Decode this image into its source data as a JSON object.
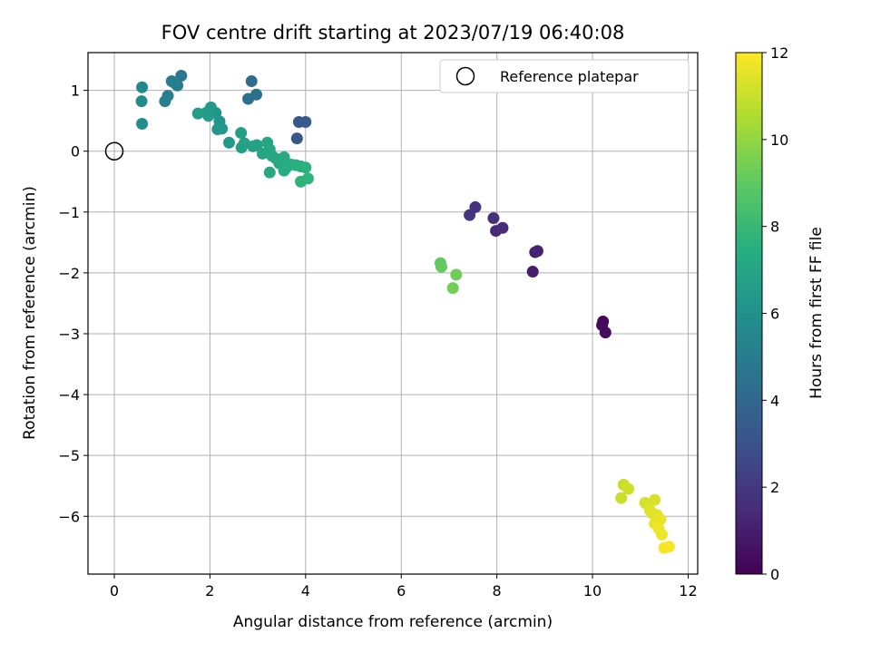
{
  "chart_data": {
    "type": "scatter",
    "title": "FOV centre drift starting at 2023/07/19 06:40:08",
    "xlabel": "Angular distance from reference (arcmin)",
    "ylabel": "Rotation from reference (arcmin)",
    "xlim": [
      -0.55,
      12.2
    ],
    "ylim": [
      -6.95,
      1.62
    ],
    "xticks": [
      0,
      2,
      4,
      6,
      8,
      10,
      12
    ],
    "xtick_labels": [
      "0",
      "2",
      "4",
      "6",
      "8",
      "10",
      "12"
    ],
    "yticks": [
      1,
      0,
      -1,
      -2,
      -3,
      -4,
      -5,
      -6
    ],
    "ytick_labels": [
      "1",
      "0",
      "−1",
      "−2",
      "−3",
      "−4",
      "−5",
      "−6"
    ],
    "grid": true,
    "colormap": "viridis",
    "colorbar": {
      "label": "Hours from first FF file",
      "range": [
        0,
        12
      ],
      "ticks": [
        0,
        2,
        4,
        6,
        8,
        10,
        12
      ],
      "tick_labels": [
        "0",
        "2",
        "4",
        "6",
        "8",
        "10",
        "12"
      ]
    },
    "legend": {
      "position": "top-right",
      "entries": [
        {
          "label": "Reference platepar",
          "marker": "open-circle"
        }
      ]
    },
    "reference_point": {
      "x": 0,
      "y": 0
    },
    "points": [
      {
        "x": 10.22,
        "y": -2.8,
        "c": 0.2
      },
      {
        "x": 10.2,
        "y": -2.86,
        "c": 0.3
      },
      {
        "x": 10.27,
        "y": -2.98,
        "c": 0.4
      },
      {
        "x": 8.75,
        "y": -1.98,
        "c": 1.0
      },
      {
        "x": 8.8,
        "y": -1.66,
        "c": 1.1
      },
      {
        "x": 8.85,
        "y": -1.64,
        "c": 1.2
      },
      {
        "x": 7.98,
        "y": -1.31,
        "c": 1.4
      },
      {
        "x": 8.12,
        "y": -1.26,
        "c": 1.5
      },
      {
        "x": 7.93,
        "y": -1.1,
        "c": 1.6
      },
      {
        "x": 7.55,
        "y": -0.92,
        "c": 1.8
      },
      {
        "x": 7.43,
        "y": -1.05,
        "c": 1.9
      },
      {
        "x": 3.82,
        "y": 0.21,
        "c": 3.2
      },
      {
        "x": 3.86,
        "y": 0.48,
        "c": 3.3
      },
      {
        "x": 4.0,
        "y": 0.48,
        "c": 3.4
      },
      {
        "x": 2.87,
        "y": 1.15,
        "c": 4.2
      },
      {
        "x": 2.8,
        "y": 0.86,
        "c": 4.3
      },
      {
        "x": 2.97,
        "y": 0.93,
        "c": 4.4
      },
      {
        "x": 1.4,
        "y": 1.24,
        "c": 4.8
      },
      {
        "x": 1.32,
        "y": 1.08,
        "c": 4.9
      },
      {
        "x": 1.2,
        "y": 1.15,
        "c": 5.0
      },
      {
        "x": 1.26,
        "y": 1.12,
        "c": 5.0
      },
      {
        "x": 1.12,
        "y": 0.91,
        "c": 5.1
      },
      {
        "x": 1.06,
        "y": 0.82,
        "c": 5.2
      },
      {
        "x": 0.58,
        "y": 1.05,
        "c": 5.6
      },
      {
        "x": 0.57,
        "y": 0.82,
        "c": 5.7
      },
      {
        "x": 0.58,
        "y": 0.45,
        "c": 5.8
      },
      {
        "x": 2.12,
        "y": 0.63,
        "c": 6.1
      },
      {
        "x": 2.2,
        "y": 0.49,
        "c": 6.2
      },
      {
        "x": 2.16,
        "y": 0.36,
        "c": 6.2
      },
      {
        "x": 2.25,
        "y": 0.37,
        "c": 6.3
      },
      {
        "x": 2.02,
        "y": 0.72,
        "c": 6.4
      },
      {
        "x": 1.92,
        "y": 0.63,
        "c": 6.5
      },
      {
        "x": 1.97,
        "y": 0.58,
        "c": 6.5
      },
      {
        "x": 1.75,
        "y": 0.62,
        "c": 6.6
      },
      {
        "x": 2.4,
        "y": 0.14,
        "c": 6.4
      },
      {
        "x": 2.65,
        "y": 0.3,
        "c": 6.6
      },
      {
        "x": 2.66,
        "y": 0.06,
        "c": 6.7
      },
      {
        "x": 2.72,
        "y": 0.13,
        "c": 6.8
      },
      {
        "x": 2.9,
        "y": 0.08,
        "c": 6.8
      },
      {
        "x": 2.98,
        "y": 0.1,
        "c": 6.9
      },
      {
        "x": 3.1,
        "y": -0.04,
        "c": 7.0
      },
      {
        "x": 3.2,
        "y": 0.14,
        "c": 7.0
      },
      {
        "x": 3.25,
        "y": 0.03,
        "c": 7.1
      },
      {
        "x": 3.3,
        "y": -0.08,
        "c": 7.1
      },
      {
        "x": 3.38,
        "y": -0.12,
        "c": 7.2
      },
      {
        "x": 3.45,
        "y": -0.2,
        "c": 7.2
      },
      {
        "x": 3.55,
        "y": -0.1,
        "c": 7.3
      },
      {
        "x": 3.6,
        "y": -0.27,
        "c": 7.3
      },
      {
        "x": 3.55,
        "y": -0.32,
        "c": 7.4
      },
      {
        "x": 3.7,
        "y": -0.22,
        "c": 7.4
      },
      {
        "x": 3.8,
        "y": -0.23,
        "c": 7.5
      },
      {
        "x": 3.9,
        "y": -0.25,
        "c": 7.5
      },
      {
        "x": 4.0,
        "y": -0.27,
        "c": 7.6
      },
      {
        "x": 3.25,
        "y": -0.35,
        "c": 7.2
      },
      {
        "x": 3.9,
        "y": -0.5,
        "c": 7.7
      },
      {
        "x": 4.05,
        "y": -0.45,
        "c": 7.7
      },
      {
        "x": 6.82,
        "y": -1.84,
        "c": 9.0
      },
      {
        "x": 6.84,
        "y": -1.9,
        "c": 9.1
      },
      {
        "x": 7.15,
        "y": -2.03,
        "c": 9.3
      },
      {
        "x": 7.08,
        "y": -2.25,
        "c": 9.4
      },
      {
        "x": 10.65,
        "y": -5.48,
        "c": 11.0
      },
      {
        "x": 10.75,
        "y": -5.55,
        "c": 11.1
      },
      {
        "x": 10.6,
        "y": -5.7,
        "c": 11.0
      },
      {
        "x": 11.1,
        "y": -5.78,
        "c": 11.2
      },
      {
        "x": 11.3,
        "y": -5.73,
        "c": 11.3
      },
      {
        "x": 11.2,
        "y": -5.9,
        "c": 11.4
      },
      {
        "x": 11.25,
        "y": -5.95,
        "c": 11.5
      },
      {
        "x": 11.35,
        "y": -5.98,
        "c": 11.5
      },
      {
        "x": 11.42,
        "y": -6.05,
        "c": 11.6
      },
      {
        "x": 11.3,
        "y": -6.12,
        "c": 11.6
      },
      {
        "x": 11.38,
        "y": -6.2,
        "c": 11.7
      },
      {
        "x": 11.45,
        "y": -6.3,
        "c": 11.7
      },
      {
        "x": 11.5,
        "y": -6.52,
        "c": 11.9
      },
      {
        "x": 11.6,
        "y": -6.5,
        "c": 11.9
      }
    ]
  }
}
